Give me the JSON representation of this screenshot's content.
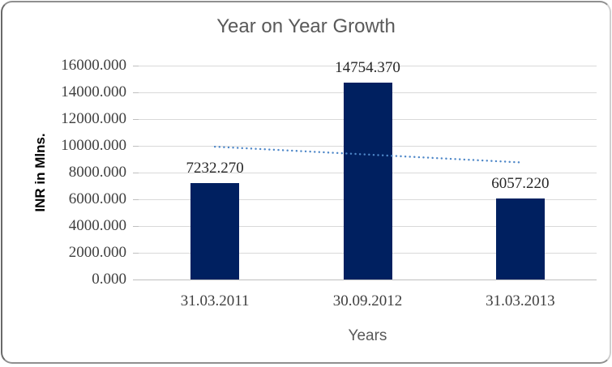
{
  "chart_data": {
    "type": "bar",
    "title": "Year on Year Growth",
    "xlabel": "Years",
    "ylabel": "INR in Mlns.",
    "categories": [
      "31.03.2011",
      "30.09.2012",
      "31.03.2013"
    ],
    "values": [
      7232.27,
      14754.37,
      6057.22
    ],
    "data_labels": [
      "7232.270",
      "14754.370",
      "6057.220"
    ],
    "ylim": [
      0,
      16000
    ],
    "yticks": [
      {
        "value": 16000,
        "label": "16000.000"
      },
      {
        "value": 14000,
        "label": "14000.000"
      },
      {
        "value": 12000,
        "label": "12000.000"
      },
      {
        "value": 10000,
        "label": "10000.000"
      },
      {
        "value": 8000,
        "label": "8000.000"
      },
      {
        "value": 6000,
        "label": "6000.000"
      },
      {
        "value": 4000,
        "label": "4000.000"
      },
      {
        "value": 2000,
        "label": "2000.000"
      },
      {
        "value": 0,
        "label": "0.000"
      }
    ],
    "grid": true,
    "legend": "none",
    "colors": {
      "bar": "#002060",
      "data_label": "#262626",
      "tick_label": "#3f3f3f",
      "title": "#595959",
      "axis_title_x": "#595959",
      "gridline": "#d9d9d9",
      "axis_line": "#bfbfbf",
      "trendline": "#4e87c8"
    },
    "trendline": {
      "type": "linear",
      "style": "dotted",
      "start_value": 9935.5,
      "end_value": 8760.4
    }
  }
}
